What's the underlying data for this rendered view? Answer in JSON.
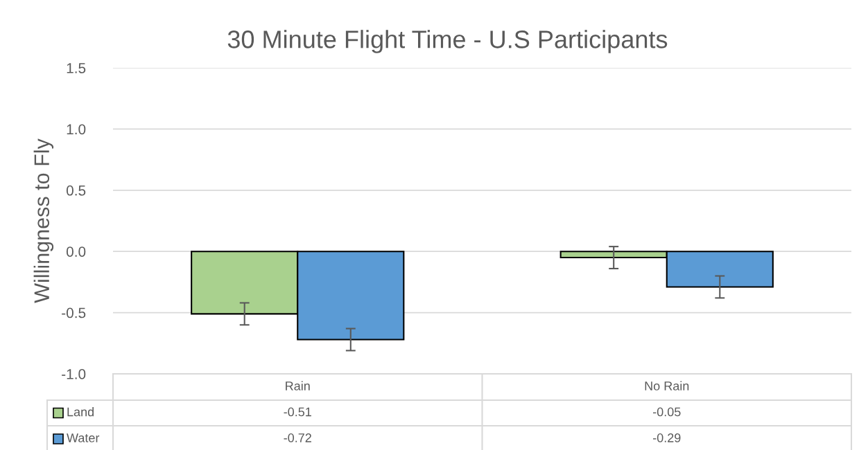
{
  "chart_data": {
    "type": "bar",
    "title": "30 Minute Flight Time - U.S Participants",
    "ylabel": "Willingness to Fly",
    "categories": [
      "Rain",
      "No Rain"
    ],
    "series": [
      {
        "name": "Land",
        "color": "#a9d18e",
        "values": [
          -0.51,
          -0.05
        ],
        "errors": [
          0.09,
          0.09
        ]
      },
      {
        "name": "Water",
        "color": "#5b9bd5",
        "values": [
          -0.72,
          -0.29
        ],
        "errors": [
          0.09,
          0.09
        ]
      }
    ],
    "ylim": [
      -1.0,
      1.5
    ],
    "yticks": [
      {
        "value": -1.0,
        "label": "-1.0"
      },
      {
        "value": -0.5,
        "label": "-0.5"
      },
      {
        "value": 0,
        "label": "0.0"
      },
      {
        "value": 0.5,
        "label": "0.5"
      },
      {
        "value": 1.0,
        "label": "1.0"
      },
      {
        "value": 1.5,
        "label": "1.5"
      }
    ],
    "grid": "y",
    "data_labels": true,
    "legend": "bottom"
  }
}
